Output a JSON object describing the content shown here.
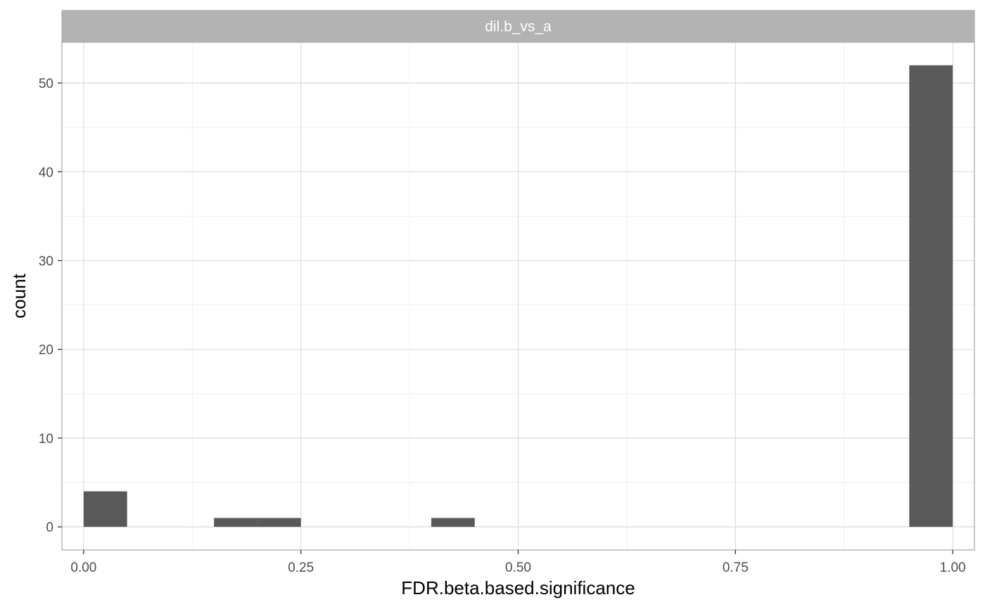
{
  "chart_data": {
    "type": "bar",
    "subtype": "histogram",
    "facet_label": "dil.b_vs_a",
    "xlabel": "FDR.beta.based.significance",
    "ylabel": "count",
    "xlim": [
      -0.025,
      1.025
    ],
    "ylim": [
      -2.6,
      54.6
    ],
    "x_ticks": [
      0.0,
      0.25,
      0.5,
      0.75,
      1.0
    ],
    "x_tick_labels": [
      "0.00",
      "0.25",
      "0.50",
      "0.75",
      "1.00"
    ],
    "y_ticks": [
      0,
      10,
      20,
      30,
      40,
      50
    ],
    "y_tick_labels": [
      "0",
      "10",
      "20",
      "30",
      "40",
      "50"
    ],
    "bin_width": 0.05,
    "bins": [
      {
        "x0": 0.0,
        "x1": 0.05,
        "count": 4
      },
      {
        "x0": 0.15,
        "x1": 0.2,
        "count": 1
      },
      {
        "x0": 0.2,
        "x1": 0.25,
        "count": 1
      },
      {
        "x0": 0.4,
        "x1": 0.45,
        "count": 1
      },
      {
        "x0": 0.95,
        "x1": 1.0,
        "count": 52
      }
    ],
    "bar_color": "#595959",
    "strip_color": "#b3b3b3",
    "grid": true
  }
}
